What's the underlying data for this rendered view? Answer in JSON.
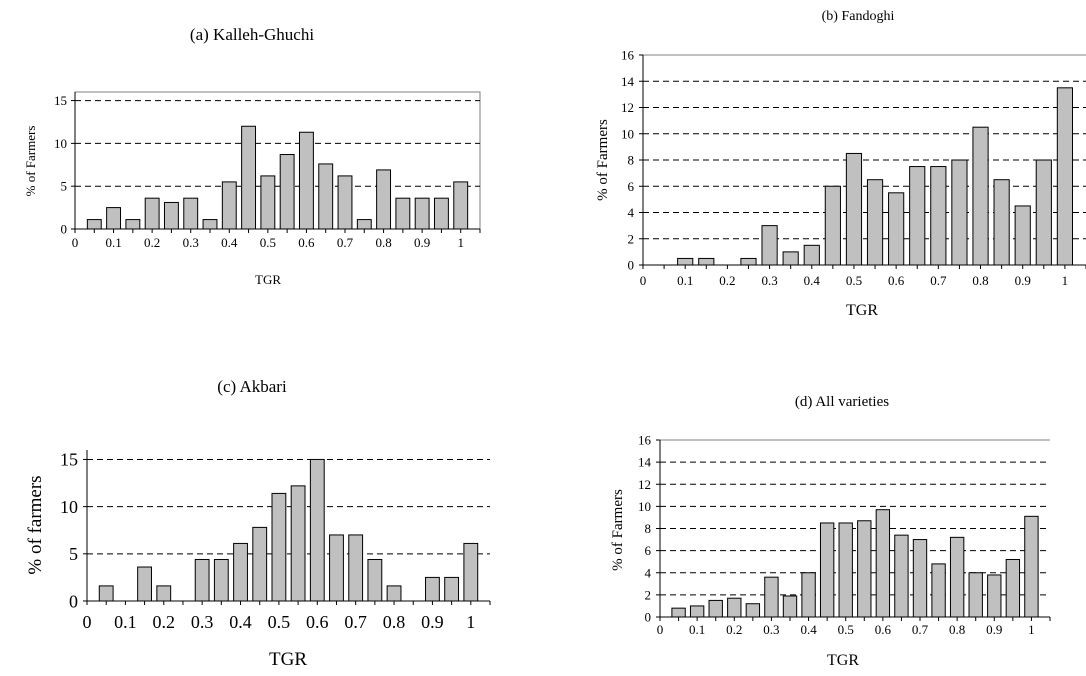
{
  "colors": {
    "bar_fill": "#c0c0c0",
    "bar_stroke": "#000000",
    "grid": "#000000",
    "background": "#ffffff"
  },
  "chart_data": [
    {
      "type": "bar",
      "title": "(a) Kalleh-Ghuchi",
      "xlabel": "TGR",
      "ylabel": "% of Farmers",
      "xticks": [
        "0",
        "0.1",
        "0.2",
        "0.3",
        "0.4",
        "0.5",
        "0.6",
        "0.7",
        "0.8",
        "0.9",
        "1"
      ],
      "yticks": [
        "0",
        "5",
        "10",
        "15"
      ],
      "ylim": [
        0,
        16
      ],
      "grid": "dashed horizontal",
      "categories": [
        "0.05",
        "0.1",
        "0.15",
        "0.2",
        "0.25",
        "0.3",
        "0.35",
        "0.4",
        "0.45",
        "0.5",
        "0.55",
        "0.6",
        "0.65",
        "0.7",
        "0.75",
        "0.8",
        "0.85",
        "0.9",
        "0.95",
        "1"
      ],
      "values": [
        1.1,
        2.5,
        1.1,
        3.6,
        3.1,
        3.6,
        1.1,
        5.5,
        12.0,
        6.2,
        8.7,
        11.3,
        7.6,
        6.2,
        1.1,
        6.9,
        3.6,
        3.6,
        3.6,
        5.5
      ]
    },
    {
      "type": "bar",
      "title": "(b) Fandoghi",
      "xlabel": "TGR",
      "ylabel": "% of Farmers",
      "xticks": [
        "0",
        "0.1",
        "0.2",
        "0.3",
        "0.4",
        "0.5",
        "0.6",
        "0.7",
        "0.8",
        "0.9",
        "1"
      ],
      "yticks": [
        "0",
        "2",
        "4",
        "6",
        "8",
        "10",
        "12",
        "14",
        "16"
      ],
      "ylim": [
        0,
        16
      ],
      "grid": "dashed horizontal",
      "categories": [
        "0.05",
        "0.1",
        "0.15",
        "0.2",
        "0.25",
        "0.3",
        "0.35",
        "0.4",
        "0.45",
        "0.5",
        "0.55",
        "0.6",
        "0.65",
        "0.7",
        "0.75",
        "0.8",
        "0.85",
        "0.9",
        "0.95",
        "1"
      ],
      "values": [
        0,
        0.5,
        0.5,
        0,
        0.5,
        3.0,
        1.0,
        1.5,
        6.0,
        8.5,
        6.5,
        5.5,
        7.5,
        7.5,
        8.0,
        10.5,
        6.5,
        4.5,
        8.0,
        13.5
      ]
    },
    {
      "type": "bar",
      "title": "(c) Akbari",
      "xlabel": "TGR",
      "ylabel": "% of farmers",
      "xticks": [
        "0",
        "0.1",
        "0.2",
        "0.3",
        "0.4",
        "0.5",
        "0.6",
        "0.7",
        "0.8",
        "0.9",
        "1"
      ],
      "yticks": [
        "0",
        "5",
        "10",
        "15"
      ],
      "ylim": [
        0,
        16
      ],
      "grid": "dashed horizontal",
      "categories": [
        "0.05",
        "0.1",
        "0.15",
        "0.2",
        "0.25",
        "0.3",
        "0.35",
        "0.4",
        "0.45",
        "0.5",
        "0.55",
        "0.6",
        "0.65",
        "0.7",
        "0.75",
        "0.8",
        "0.85",
        "0.9",
        "0.95",
        "1"
      ],
      "values": [
        1.6,
        0,
        3.6,
        1.6,
        0,
        4.4,
        4.4,
        6.1,
        7.8,
        11.4,
        12.2,
        15.0,
        7.0,
        7.0,
        4.4,
        1.6,
        0,
        2.5,
        2.5,
        6.1
      ]
    },
    {
      "type": "bar",
      "title": "(d) All varieties",
      "xlabel": "TGR",
      "ylabel": "% of Farmers",
      "xticks": [
        "0",
        "0.1",
        "0.2",
        "0.3",
        "0.4",
        "0.5",
        "0.6",
        "0.7",
        "0.8",
        "0.9",
        "1"
      ],
      "yticks": [
        "0",
        "2",
        "4",
        "6",
        "8",
        "10",
        "12",
        "14",
        "16"
      ],
      "ylim": [
        0,
        16
      ],
      "grid": "dashed horizontal",
      "categories": [
        "0.05",
        "0.1",
        "0.15",
        "0.2",
        "0.25",
        "0.3",
        "0.35",
        "0.4",
        "0.45",
        "0.5",
        "0.55",
        "0.6",
        "0.65",
        "0.7",
        "0.75",
        "0.8",
        "0.85",
        "0.9",
        "0.95",
        "1"
      ],
      "values": [
        0.8,
        1.0,
        1.5,
        1.7,
        1.2,
        3.6,
        1.9,
        4.0,
        8.5,
        8.5,
        8.7,
        9.7,
        7.4,
        7.0,
        4.8,
        7.2,
        4.0,
        3.8,
        5.2,
        9.1
      ]
    }
  ]
}
